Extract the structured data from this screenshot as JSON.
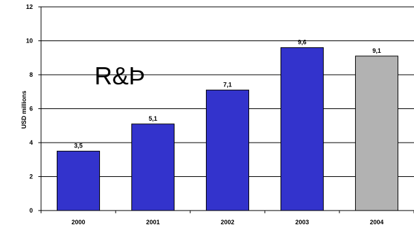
{
  "chart_data": {
    "type": "bar",
    "categories": [
      "2000",
      "2001",
      "2002",
      "2003",
      "2004"
    ],
    "values": [
      3.5,
      5.1,
      7.1,
      9.6,
      9.1
    ],
    "data_labels": [
      "3,5",
      "5,1",
      "7,1",
      "9,6",
      "9,1"
    ],
    "bar_colors": [
      "#3333CC",
      "#3333CC",
      "#3333CC",
      "#3333CC",
      "#B2B2B2"
    ],
    "ylabel": "USD millions",
    "xlabel": "",
    "title": "",
    "ylim": [
      0,
      12
    ],
    "yticks": [
      0,
      2,
      4,
      6,
      8,
      10,
      12
    ],
    "grid": true,
    "legend": "none",
    "annotation": "R&Þ"
  }
}
